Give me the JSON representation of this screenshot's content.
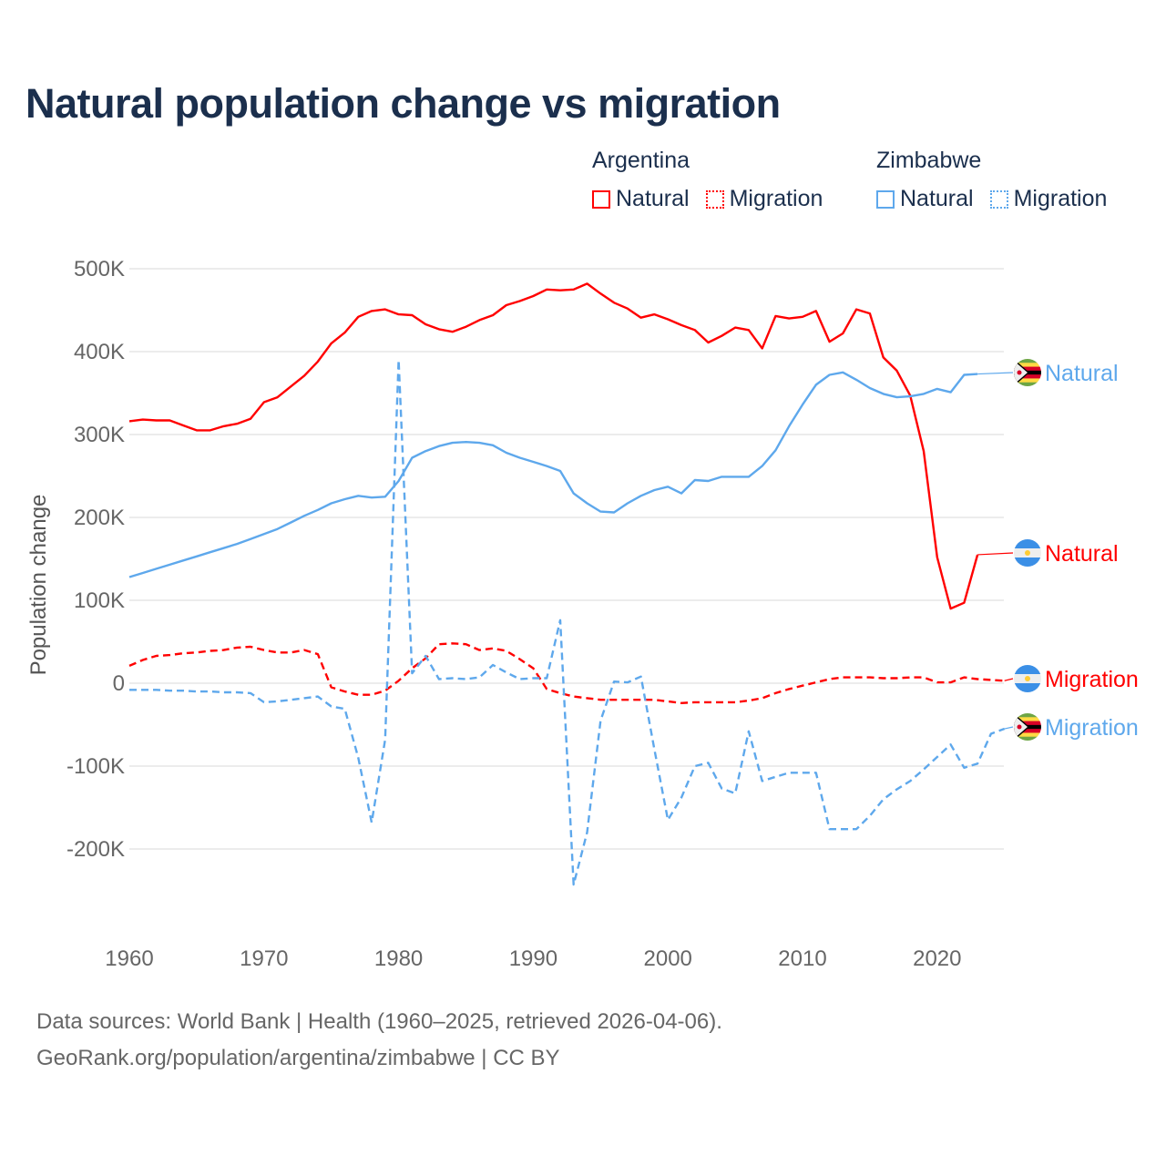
{
  "title": "Natural population change vs migration",
  "legend": {
    "groups": [
      {
        "name": "Argentina",
        "color": "#ff0000",
        "items": [
          "Natural",
          "Migration"
        ]
      },
      {
        "name": "Zimbabwe",
        "color": "#5ea8ec",
        "items": [
          "Natural",
          "Migration"
        ]
      }
    ]
  },
  "footer": {
    "line1": "Data sources: World Bank | Health (1960–2025, retrieved 2026-04-06).",
    "line2": "GeoRank.org/population/argentina/zimbabwe | CC BY"
  },
  "chart_data": {
    "type": "line",
    "title": "Natural population change vs migration",
    "xlabel": "",
    "ylabel": "Population change",
    "xlim": [
      1960,
      2025
    ],
    "ylim": [
      -280000,
      500000
    ],
    "x_ticks": [
      1960,
      1970,
      1980,
      1990,
      2000,
      2010,
      2020
    ],
    "y_ticks": [
      {
        "value": 500000,
        "label": "500K"
      },
      {
        "value": 400000,
        "label": "400K"
      },
      {
        "value": 300000,
        "label": "300K"
      },
      {
        "value": 200000,
        "label": "200K"
      },
      {
        "value": 100000,
        "label": "100K"
      },
      {
        "value": 0,
        "label": "0"
      },
      {
        "value": -100000,
        "label": "-100K"
      },
      {
        "value": -200000,
        "label": "-200K"
      }
    ],
    "grid": true,
    "x_start": 1960,
    "series": [
      {
        "name": "Natural",
        "country": "Argentina",
        "color": "#ff0000",
        "dash": false,
        "end_label": "Natural",
        "label_offset": 0,
        "values_k": [
          316,
          318,
          317,
          317,
          311,
          305,
          305,
          310,
          313,
          319,
          339,
          345,
          358,
          371,
          388,
          410,
          423,
          442,
          449,
          451,
          445,
          444,
          433,
          427,
          424,
          430,
          438,
          444,
          456,
          461,
          467,
          475,
          474,
          475,
          482,
          470,
          459,
          452,
          441,
          445,
          439,
          432,
          426,
          411,
          419,
          429,
          426,
          404,
          443,
          440,
          442,
          449,
          412,
          422,
          451,
          446,
          393,
          377,
          347,
          280,
          152,
          90,
          97,
          155
        ]
      },
      {
        "name": "Migration",
        "country": "Argentina",
        "color": "#ff0000",
        "dash": true,
        "end_label": "Migration",
        "label_offset": 0,
        "values_k": [
          21,
          28,
          33,
          34,
          36,
          37,
          39,
          40,
          43,
          44,
          40,
          37,
          37,
          40,
          35,
          -5,
          -10,
          -14,
          -14,
          -9,
          3,
          18,
          30,
          47,
          48,
          47,
          40,
          42,
          39,
          29,
          18,
          -7,
          -12,
          -16,
          -18,
          -20,
          -20,
          -20,
          -20,
          -20,
          -22,
          -24,
          -23,
          -23,
          -23,
          -23,
          -21,
          -18,
          -12,
          -7,
          -3,
          1,
          5,
          7,
          7,
          7,
          6,
          6,
          7,
          7,
          1,
          1,
          7,
          5,
          4,
          3
        ]
      },
      {
        "name": "Natural",
        "country": "Zimbabwe",
        "color": "#5ea8ec",
        "dash": false,
        "end_label": "Natural",
        "label_offset": 0,
        "values_k": [
          128,
          133,
          138,
          143,
          148,
          153,
          158,
          163,
          168,
          174,
          180,
          186,
          194,
          202,
          209,
          217,
          222,
          226,
          224,
          225,
          244,
          272,
          280,
          286,
          290,
          291,
          290,
          287,
          278,
          272,
          267,
          262,
          256,
          229,
          217,
          207,
          206,
          217,
          226,
          233,
          237,
          229,
          245,
          244,
          249,
          249,
          249,
          262,
          281,
          310,
          336,
          360,
          372,
          375,
          366,
          356,
          349,
          345,
          346,
          349,
          355,
          351,
          372,
          373
        ]
      },
      {
        "name": "Migration",
        "country": "Zimbabwe",
        "color": "#5ea8ec",
        "dash": true,
        "end_label": "Migration",
        "label_offset": 0,
        "values_k": [
          -8,
          -8,
          -8,
          -9,
          -9,
          -10,
          -10,
          -11,
          -11,
          -12,
          -23,
          -22,
          -20,
          -18,
          -16,
          -28,
          -31,
          -90,
          -168,
          -68,
          390,
          12,
          33,
          5,
          6,
          5,
          7,
          22,
          13,
          5,
          6,
          6,
          76,
          -243,
          -180,
          -45,
          2,
          1,
          8,
          -80,
          -165,
          -138,
          -100,
          -96,
          -127,
          -133,
          -58,
          -118,
          -113,
          -108,
          -108,
          -108,
          -176,
          -176,
          -176,
          -160,
          -140,
          -128,
          -118,
          -104,
          -89,
          -74,
          -102,
          -97,
          -61,
          -55
        ]
      }
    ]
  }
}
